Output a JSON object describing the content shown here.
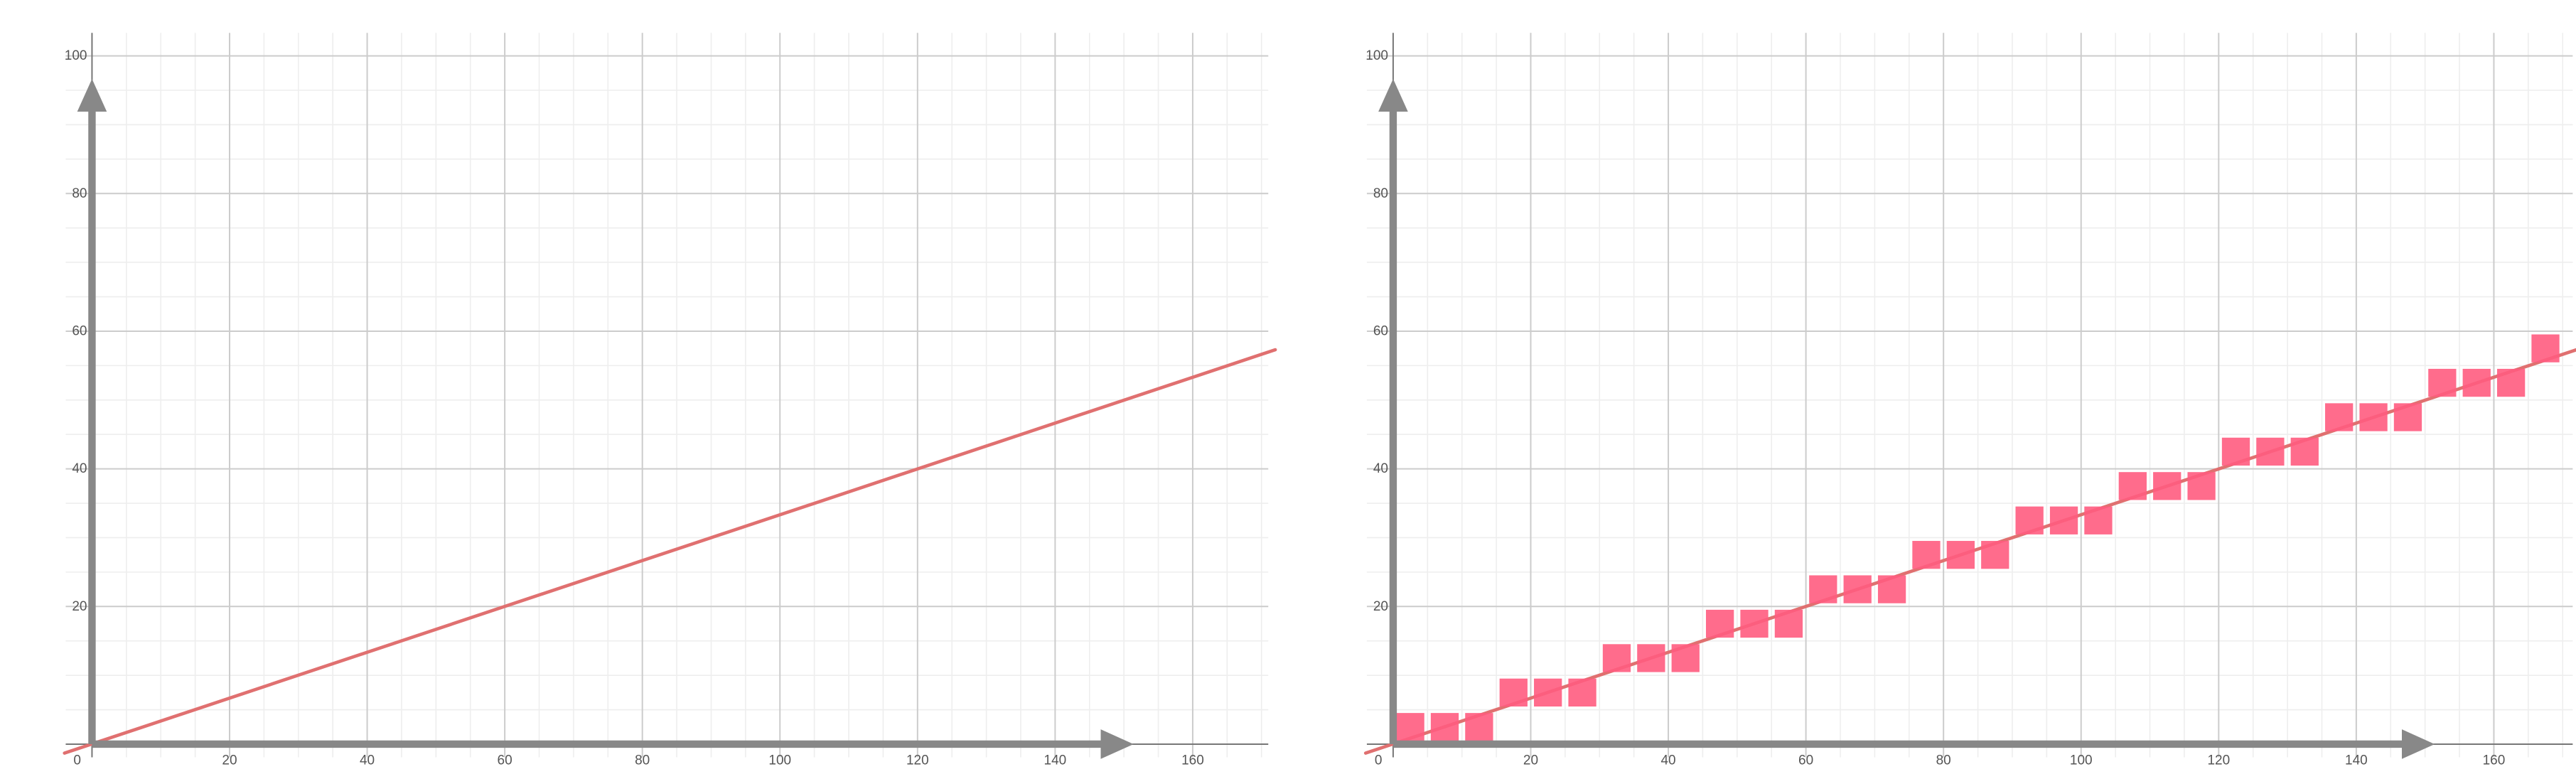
{
  "chart_data": [
    {
      "type": "line",
      "title": "",
      "xlabel": "",
      "ylabel": "",
      "xlim": [
        0,
        172
      ],
      "ylim": [
        0,
        100
      ],
      "x_ticks": [
        "0",
        "20",
        "40",
        "60",
        "80",
        "100",
        "120",
        "140",
        "160"
      ],
      "y_ticks": [
        "20",
        "40",
        "60",
        "80",
        "100"
      ],
      "grid": true,
      "series": [
        {
          "kind": "line",
          "color": "#e07070",
          "x": [
            -4,
            172
          ],
          "y": [
            -1.3,
            57.3
          ]
        }
      ]
    },
    {
      "type": "scatter",
      "title": "",
      "xlabel": "",
      "ylabel": "",
      "xlim": [
        0,
        172
      ],
      "ylim": [
        0,
        100
      ],
      "x_ticks": [
        "0",
        "20",
        "40",
        "60",
        "80",
        "100",
        "120",
        "140",
        "160"
      ],
      "y_ticks": [
        "20",
        "40",
        "60",
        "80",
        "100"
      ],
      "grid": true,
      "series": [
        {
          "kind": "line",
          "color": "#e07070",
          "x": [
            -4,
            172
          ],
          "y": [
            -1.3,
            57.3
          ]
        },
        {
          "kind": "squares",
          "color": "#ff5c80",
          "x": [
            2.5,
            7.5,
            12.5,
            17.5,
            22.5,
            27.5,
            32.5,
            37.5,
            42.5,
            47.5,
            52.5,
            57.5,
            62.5,
            67.5,
            72.5,
            77.5,
            82.5,
            87.5,
            92.5,
            97.5,
            102.5,
            107.5,
            112.5,
            117.5,
            122.5,
            127.5,
            132.5,
            137.5,
            142.5,
            147.5,
            152.5,
            157.5,
            162.5,
            167.5
          ],
          "y": [
            2.5,
            2.5,
            2.5,
            7.5,
            7.5,
            7.5,
            12.5,
            12.5,
            12.5,
            17.5,
            17.5,
            17.5,
            22.5,
            22.5,
            22.5,
            27.5,
            27.5,
            27.5,
            32.5,
            32.5,
            32.5,
            37.5,
            37.5,
            37.5,
            42.5,
            42.5,
            42.5,
            47.5,
            47.5,
            47.5,
            52.5,
            52.5,
            52.5,
            57.5
          ]
        }
      ]
    }
  ]
}
